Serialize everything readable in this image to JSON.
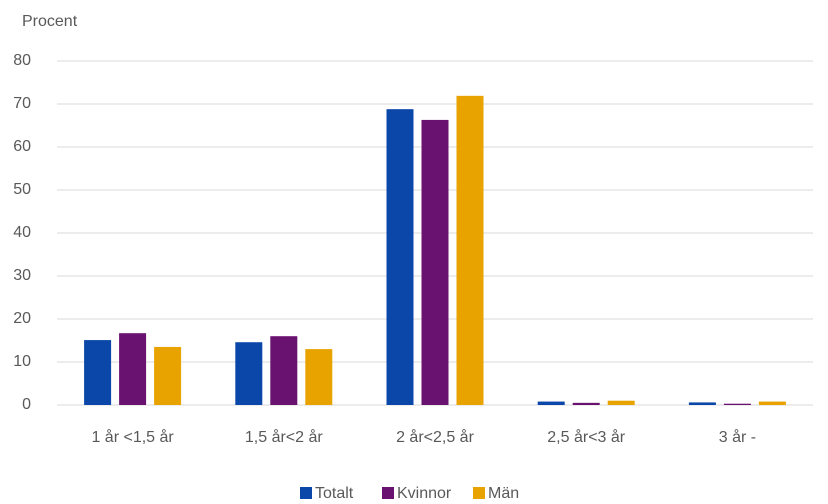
{
  "chart_data": {
    "type": "bar",
    "y_label": "Procent",
    "categories": [
      "1 år <1,5 år",
      "1,5 år<2 år",
      "2 år<2,5 år",
      "2,5 år<3 år",
      "3 år -"
    ],
    "series": [
      {
        "name": "Totalt",
        "color": "#0b47a8",
        "values": [
          15.1,
          14.6,
          68.8,
          0.8,
          0.6
        ]
      },
      {
        "name": "Kvinnor",
        "color": "#6a1270",
        "values": [
          16.7,
          16.0,
          66.3,
          0.5,
          0.3
        ]
      },
      {
        "name": "Män",
        "color": "#e8a300",
        "values": [
          13.5,
          13.0,
          71.9,
          1.0,
          0.8
        ]
      }
    ],
    "ylim": [
      0,
      80
    ],
    "yticks": [
      0,
      10,
      20,
      30,
      40,
      50,
      60,
      70,
      80
    ],
    "grid": true,
    "legend": "bottom"
  }
}
